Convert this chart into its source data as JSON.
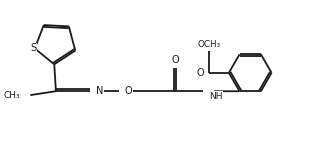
{
  "bg": "#ffffff",
  "lc": "#1a1a1a",
  "lw": 1.3,
  "fs": 6.8,
  "figsize": [
    3.18,
    1.45
  ],
  "dpi": 100,
  "xlim": [
    0,
    9.5
  ],
  "ylim": [
    0,
    4.3
  ]
}
